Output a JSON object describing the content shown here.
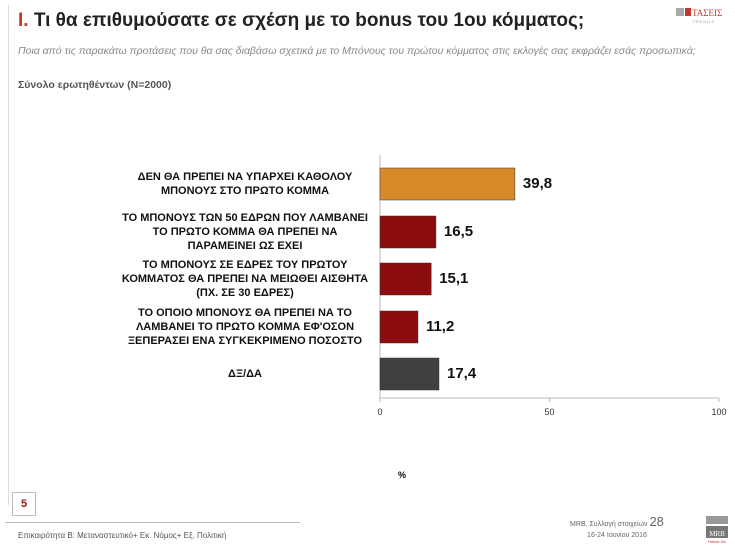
{
  "header": {
    "title_num": "I.",
    "title": " Τι θα επιθυμούσατε σε σχέση με το bonus του 1ου κόμματος;",
    "subtitle": "Ποια από τις παρακάτω προτάσεις που θα σας διαβάσω σχετικά με το Μπόνους του πρώτου κόμματος στις εκλογές σας εκφράζει εσάς προσωπικά;",
    "base": "Σύνολο ερωτηθέντων (N=2000)",
    "logo": "ΤΑΣΕΙΣ TRENDS"
  },
  "chart_data": {
    "type": "bar",
    "orientation": "horizontal",
    "categories": [
      "ΔΕΝ ΘΑ ΠΡΕΠΕΙ ΝΑ ΥΠΑΡΧΕΙ ΚΑΘΟΛΟΥ ΜΠΟΝΟΥΣ ΣΤΟ ΠΡΩΤΟ ΚΟΜΜΑ",
      "ΤΟ ΜΠΟΝΟΥΣ ΤΩΝ 50 ΕΔΡΩΝ ΠΟΥ ΛΑΜΒΑΝΕΙ ΤΟ ΠΡΩΤΟ ΚΟΜΜΑ ΘΑ ΠΡΕΠΕΙ ΝΑ ΠΑΡΑΜΕΙΝΕΙ ΩΣ ΕΧΕΙ",
      "ΤΟ ΜΠΟΝΟΥΣ ΣΕ ΕΔΡΕΣ ΤΟΥ ΠΡΩΤΟΥ ΚΟΜΜΑΤΟΣ ΘΑ ΠΡΕΠΕΙ ΝΑ ΜΕΙΩΘΕΙ ΑΙΣΘΗΤΑ (ΠΧ. ΣΕ 30 ΕΔΡΕΣ)",
      "ΤΟ ΟΠΟΙΟ ΜΠΟΝΟΥΣ ΘΑ ΠΡΕΠΕΙ ΝΑ ΤΟ ΛΑΜΒΑΝΕΙ ΤΟ ΠΡΩΤΟ ΚΟΜΜΑ ΕΦ'ΟΣΟΝ ΞΕΠΕΡΑΣΕΙ ΕΝΑ ΣΥΓΚΕΚΡΙΜΕΝΟ ΠΟΣΟΣΤΟ",
      "ΔΞ/ΔΑ"
    ],
    "values": [
      39.8,
      16.5,
      15.1,
      11.2,
      17.4
    ],
    "value_labels": [
      "39,8",
      "16,5",
      "15,1",
      "11,2",
      "17,4"
    ],
    "colors": [
      "#D68A2A",
      "#8B0D0D",
      "#8B0D0D",
      "#8B0D0D",
      "#404040"
    ],
    "xlim": [
      0,
      100
    ],
    "xticks": [
      "0",
      "50",
      "100"
    ],
    "xlabel": "%",
    "title": "",
    "ylabel": ""
  },
  "footer": {
    "page": "5",
    "left": "Επικαιρότητα Β: Μεταναστευτικό+ Εκ. Νόμος+ Εξ. Πολιτική",
    "source": "MRB, Συλλογή στοιχείων",
    "source_num": "28",
    "dates": "16-24 Ιουνίου 2016",
    "mrb_logo": "MRB"
  }
}
